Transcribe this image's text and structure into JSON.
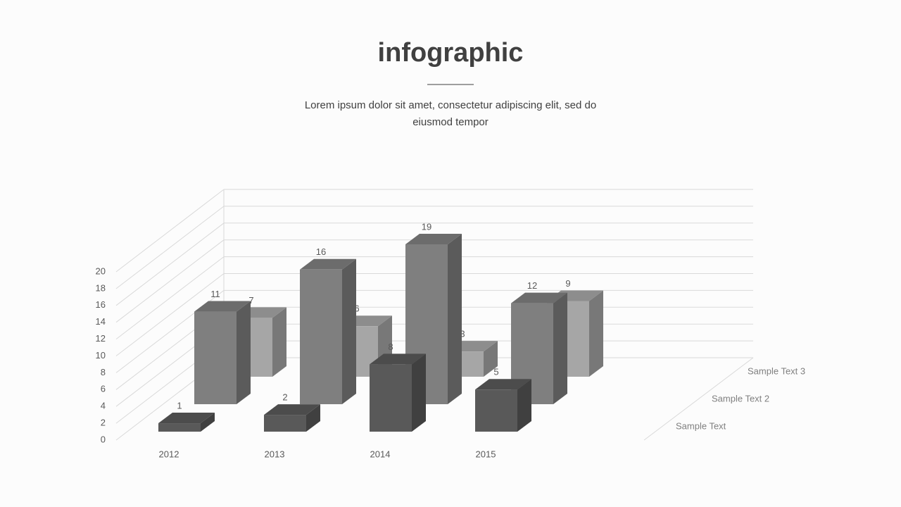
{
  "chart_data": {
    "type": "bar3d",
    "title": "infographic",
    "subtitle": "Lorem ipsum dolor sit amet, consectetur adipiscing elit, sed do eiusmod tempor",
    "categories": [
      "2012",
      "2013",
      "2014",
      "2015"
    ],
    "series": [
      {
        "name": "Sample Text",
        "color": "#595959",
        "values": [
          1,
          2,
          8,
          5
        ]
      },
      {
        "name": "Sample Text 2",
        "color": "#7f7f7f",
        "values": [
          11,
          16,
          19,
          12
        ]
      },
      {
        "name": "Sample Text 3",
        "color": "#a6a6a6",
        "values": [
          7,
          6,
          3,
          9
        ]
      }
    ],
    "ylim": [
      0,
      20
    ],
    "yticks": [
      0,
      2,
      4,
      6,
      8,
      10,
      12,
      14,
      16,
      18,
      20
    ],
    "grid": true
  }
}
